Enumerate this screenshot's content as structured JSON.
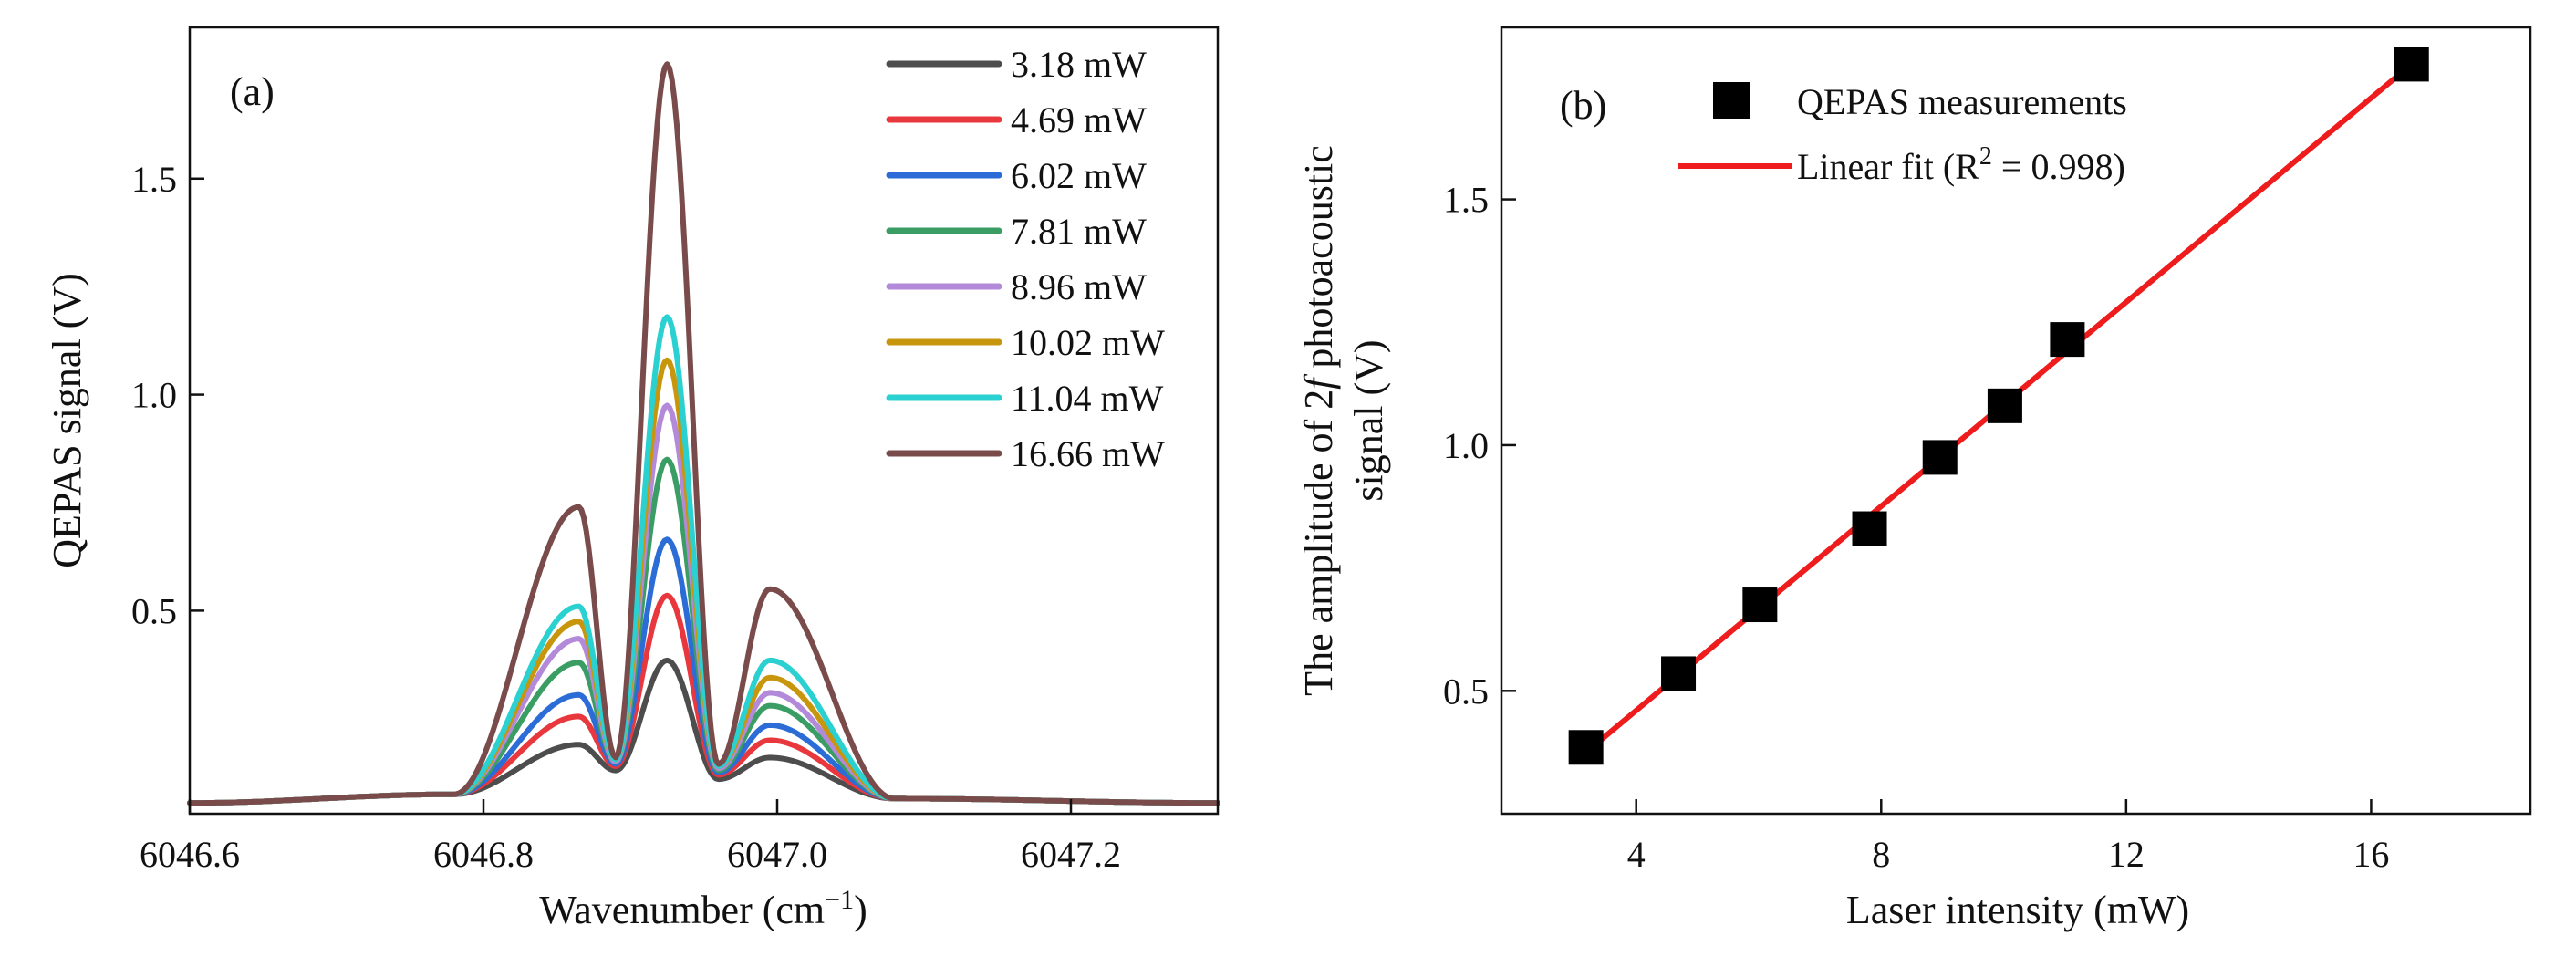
{
  "chart_data": [
    {
      "type": "line",
      "panel_label": "(a)",
      "xlabel": "Wavenumber (cm",
      "xlabel_sup": "−1",
      "xlabel_end": ")",
      "ylabel": "QEPAS signal  (V)",
      "xlim": [
        6046.6,
        6047.3
      ],
      "ylim": [
        0.03,
        1.85
      ],
      "xticks": [
        6046.6,
        6046.8,
        6047.0,
        6047.2
      ],
      "xtick_labels": [
        "6046.6",
        "6046.8",
        "6047.0",
        "6047.2"
      ],
      "yticks": [
        0.5,
        1.0,
        1.5
      ],
      "ytick_labels": [
        "0.5",
        "1.0",
        "1.5"
      ],
      "legend_position": "top-right",
      "baseline": 0.055,
      "peak_positions": [
        6046.865,
        6046.89,
        6046.925,
        6046.96,
        6046.995
      ],
      "series": [
        {
          "name": "3.18 mW",
          "color": "#4d4d4d",
          "peaks": [
            0.19,
            0.13,
            0.385,
            0.11,
            0.16
          ]
        },
        {
          "name": "4.69 mW",
          "color": "#e8383d",
          "peaks": [
            0.255,
            0.14,
            0.535,
            0.12,
            0.2
          ]
        },
        {
          "name": "6.02 mW",
          "color": "#2b6cd6",
          "peaks": [
            0.305,
            0.145,
            0.665,
            0.125,
            0.235
          ]
        },
        {
          "name": "7.81 mW",
          "color": "#3a9e64",
          "peaks": [
            0.38,
            0.15,
            0.85,
            0.13,
            0.28
          ]
        },
        {
          "name": "8.96 mW",
          "color": "#b28ad9",
          "peaks": [
            0.435,
            0.15,
            0.975,
            0.135,
            0.31
          ]
        },
        {
          "name": "10.02 mW",
          "color": "#c8960c",
          "peaks": [
            0.475,
            0.155,
            1.08,
            0.14,
            0.345
          ]
        },
        {
          "name": "11.04 mW",
          "color": "#2bd0d0",
          "peaks": [
            0.51,
            0.155,
            1.18,
            0.14,
            0.385
          ]
        },
        {
          "name": "16.66 mW",
          "color": "#7a4b4b",
          "peaks": [
            0.74,
            0.16,
            1.765,
            0.145,
            0.55
          ]
        }
      ]
    },
    {
      "type": "scatter",
      "panel_label": "(b)",
      "xlabel": "Laser intensity (mW)",
      "ylabel_line1_pre": "The amplitude of 2",
      "ylabel_line1_italic": "f",
      "ylabel_line1_post": " photoacoustic",
      "ylabel_line2": "signal (V)",
      "xlim": [
        1.8,
        18.6
      ],
      "ylim": [
        0.25,
        1.85
      ],
      "xticks": [
        4,
        8,
        12,
        16
      ],
      "xtick_labels": [
        "4",
        "8",
        "12",
        "16"
      ],
      "yticks": [
        0.5,
        1.0,
        1.5
      ],
      "ytick_labels": [
        "0.5",
        "1.0",
        "1.5"
      ],
      "legend_position": "top",
      "points": {
        "name": "QEPAS measurements",
        "x": [
          3.18,
          4.69,
          6.02,
          7.81,
          8.96,
          10.02,
          11.04,
          16.66
        ],
        "y": [
          0.385,
          0.535,
          0.675,
          0.83,
          0.975,
          1.08,
          1.215,
          1.775
        ],
        "color": "#000000"
      },
      "fit": {
        "name_pre": "Linear fit (R",
        "name_sup": "2",
        "name_post": " = 0.998)",
        "x": [
          3.18,
          16.66
        ],
        "y": [
          0.375,
          1.775
        ],
        "color": "#ee1c1c"
      }
    }
  ]
}
